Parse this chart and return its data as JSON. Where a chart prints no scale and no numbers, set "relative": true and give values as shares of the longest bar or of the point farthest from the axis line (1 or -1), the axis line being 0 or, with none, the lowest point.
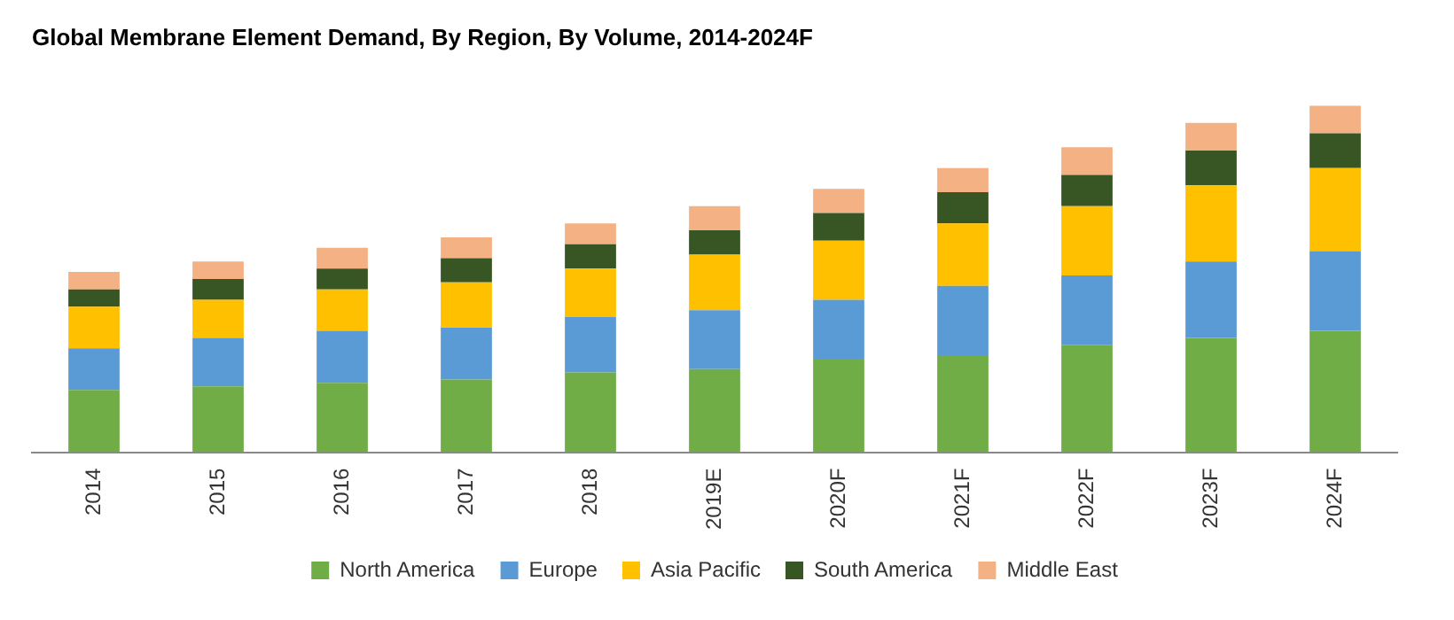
{
  "chart_data": {
    "type": "bar",
    "title": "Global Membrane Element Demand, By Region, By Volume, 2014-2024F",
    "categories": [
      "2014",
      "2015",
      "2016",
      "2017",
      "2018",
      "2019E",
      "2020F",
      "2021F",
      "2022F",
      "2023F",
      "2024F"
    ],
    "stacked": true,
    "relative": true,
    "grid": false,
    "legend": "bottom",
    "series": [
      {
        "name": "North America",
        "color": "#70ad47",
        "values": [
          0.18,
          0.19,
          0.2,
          0.21,
          0.23,
          0.24,
          0.27,
          0.28,
          0.31,
          0.33,
          0.35
        ]
      },
      {
        "name": "Europe",
        "color": "#5b9bd5",
        "values": [
          0.12,
          0.14,
          0.15,
          0.15,
          0.16,
          0.17,
          0.17,
          0.2,
          0.2,
          0.22,
          0.23
        ]
      },
      {
        "name": "Asia Pacific",
        "color": "#ffc000",
        "values": [
          0.12,
          0.11,
          0.12,
          0.13,
          0.14,
          0.16,
          0.17,
          0.18,
          0.2,
          0.22,
          0.24
        ]
      },
      {
        "name": "South America",
        "color": "#375623",
        "values": [
          0.05,
          0.06,
          0.06,
          0.07,
          0.07,
          0.07,
          0.08,
          0.09,
          0.09,
          0.1,
          0.1
        ]
      },
      {
        "name": "Middle East",
        "color": "#f4b183",
        "values": [
          0.05,
          0.05,
          0.06,
          0.06,
          0.06,
          0.07,
          0.07,
          0.07,
          0.08,
          0.08,
          0.08
        ]
      }
    ]
  }
}
